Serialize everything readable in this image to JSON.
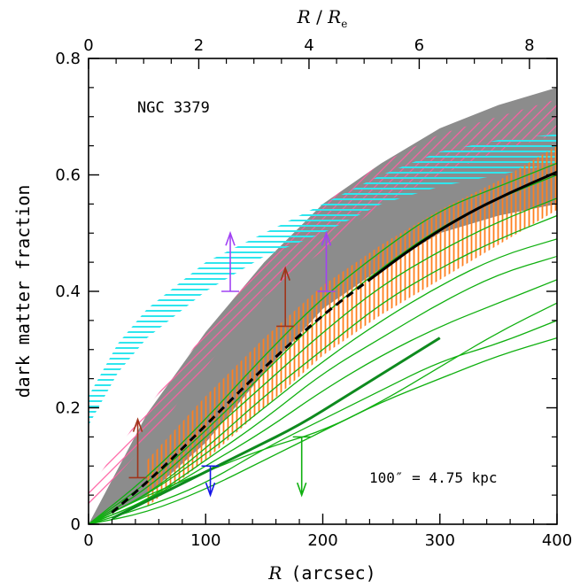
{
  "chart_data": {
    "type": "line",
    "title": "",
    "xlabel_italic": "R",
    "xlabel_unit": "(arcsec)",
    "ylabel": "dark matter fraction",
    "top_xlabel_italic_1": "R",
    "top_xlabel_sep": " / ",
    "top_xlabel_italic_2": "R",
    "top_xlabel_sub": "e",
    "annotation_galaxy": "NGC 3379",
    "annotation_scale": "100″ = 4.75 kpc",
    "xlim": [
      0,
      400
    ],
    "ylim": [
      0,
      0.8
    ],
    "top_xlim": [
      0,
      8.5
    ],
    "x_ticks": [
      0,
      100,
      200,
      300,
      400
    ],
    "x_ticklabels": [
      "0",
      "100",
      "200",
      "300",
      "400"
    ],
    "y_ticks": [
      0,
      0.2,
      0.4,
      0.6,
      0.8
    ],
    "y_ticklabels": [
      "0",
      "0.2",
      "0.4",
      "0.6",
      "0.8"
    ],
    "top_ticks": [
      0,
      2,
      4,
      6,
      8
    ],
    "top_ticklabels": [
      "0",
      "2",
      "4",
      "6",
      "8"
    ],
    "colors": {
      "gray_band": "#8c8c8c",
      "pink_hatch": "#ff5fa2",
      "cyan_hatch": "#2fe6ee",
      "orange_hatch": "#ff7f1e",
      "green": "#10b010",
      "dark_green": "#0e8a1e",
      "black": "#000000",
      "brown": "#a0341a",
      "purple": "#a142f4",
      "blue": "#1515e8"
    },
    "bands": [
      {
        "style": "gray",
        "x": [
          0,
          50,
          100,
          150,
          200,
          250,
          300,
          350,
          400
        ],
        "lower": [
          0.0,
          0.05,
          0.14,
          0.26,
          0.37,
          0.44,
          0.5,
          0.53,
          0.55
        ],
        "upper": [
          0.0,
          0.19,
          0.33,
          0.45,
          0.55,
          0.62,
          0.68,
          0.72,
          0.75
        ]
      },
      {
        "style": "pink",
        "x": [
          0,
          50,
          100,
          150,
          200,
          250,
          300,
          350,
          400
        ],
        "lower": [
          0.03,
          0.14,
          0.27,
          0.39,
          0.47,
          0.55,
          0.6,
          0.64,
          0.67
        ],
        "upper": [
          0.06,
          0.2,
          0.33,
          0.45,
          0.55,
          0.62,
          0.67,
          0.7,
          0.73
        ]
      },
      {
        "style": "cyan",
        "x": [
          0,
          25,
          50,
          100,
          150,
          200,
          250,
          300,
          350,
          400
        ],
        "lower": [
          0.17,
          0.26,
          0.32,
          0.4,
          0.46,
          0.5,
          0.55,
          0.58,
          0.6,
          0.62
        ],
        "upper": [
          0.22,
          0.31,
          0.37,
          0.45,
          0.5,
          0.55,
          0.6,
          0.64,
          0.66,
          0.67
        ]
      },
      {
        "style": "orange",
        "x": [
          50,
          100,
          150,
          200,
          250,
          300,
          350,
          400
        ],
        "lower": [
          0.03,
          0.11,
          0.2,
          0.29,
          0.36,
          0.42,
          0.48,
          0.54
        ],
        "upper": [
          0.11,
          0.22,
          0.32,
          0.41,
          0.48,
          0.54,
          0.59,
          0.65
        ]
      }
    ],
    "green_curves": {
      "x": [
        0,
        50,
        100,
        150,
        200,
        250,
        300,
        350,
        400
      ],
      "series": [
        [
          0.0,
          0.08,
          0.18,
          0.29,
          0.39,
          0.47,
          0.54,
          0.58,
          0.62
        ],
        [
          0.0,
          0.07,
          0.16,
          0.26,
          0.36,
          0.44,
          0.51,
          0.56,
          0.6
        ],
        [
          0.0,
          0.06,
          0.15,
          0.24,
          0.33,
          0.41,
          0.47,
          0.52,
          0.56
        ],
        [
          0.0,
          0.05,
          0.13,
          0.22,
          0.3,
          0.38,
          0.44,
          0.49,
          0.53
        ],
        [
          0.0,
          0.05,
          0.12,
          0.2,
          0.28,
          0.35,
          0.41,
          0.46,
          0.49
        ],
        [
          0.0,
          0.04,
          0.11,
          0.18,
          0.26,
          0.32,
          0.38,
          0.43,
          0.46
        ],
        [
          0.0,
          0.04,
          0.1,
          0.16,
          0.23,
          0.29,
          0.34,
          0.38,
          0.42
        ],
        [
          0.0,
          0.03,
          0.07,
          0.13,
          0.18,
          0.23,
          0.28,
          0.31,
          0.35
        ],
        [
          0.0,
          0.02,
          0.06,
          0.11,
          0.16,
          0.21,
          0.25,
          0.29,
          0.32
        ],
        [
          0.0,
          0.05,
          0.09,
          0.13,
          0.16,
          0.21,
          0.27,
          0.33,
          0.38
        ]
      ]
    },
    "thick_green": {
      "x": [
        20,
        60,
        100,
        140,
        180,
        220,
        260,
        300
      ],
      "y": [
        0.01,
        0.05,
        0.09,
        0.13,
        0.17,
        0.22,
        0.27,
        0.32
      ]
    },
    "black_dashed": {
      "x": [
        20,
        60,
        100,
        150,
        200,
        240
      ],
      "y": [
        0.02,
        0.09,
        0.17,
        0.27,
        0.36,
        0.42
      ]
    },
    "black_solid": {
      "x": [
        240,
        280,
        320,
        360,
        400
      ],
      "y": [
        0.42,
        0.48,
        0.53,
        0.57,
        0.605
      ]
    },
    "lower_limits": [
      {
        "x": 42,
        "y": 0.08,
        "y_to": 0.18,
        "color": "brown"
      },
      {
        "x": 168,
        "y": 0.34,
        "y_to": 0.44,
        "color": "brown"
      },
      {
        "x": 121,
        "y": 0.4,
        "y_to": 0.5,
        "color": "purple"
      },
      {
        "x": 203,
        "y": 0.4,
        "y_to": 0.5,
        "color": "purple"
      }
    ],
    "upper_limits": [
      {
        "x": 104,
        "y": 0.1,
        "y_to": 0.05,
        "color": "blue"
      },
      {
        "x": 182,
        "y": 0.15,
        "y_to": 0.05,
        "color": "green"
      }
    ]
  }
}
